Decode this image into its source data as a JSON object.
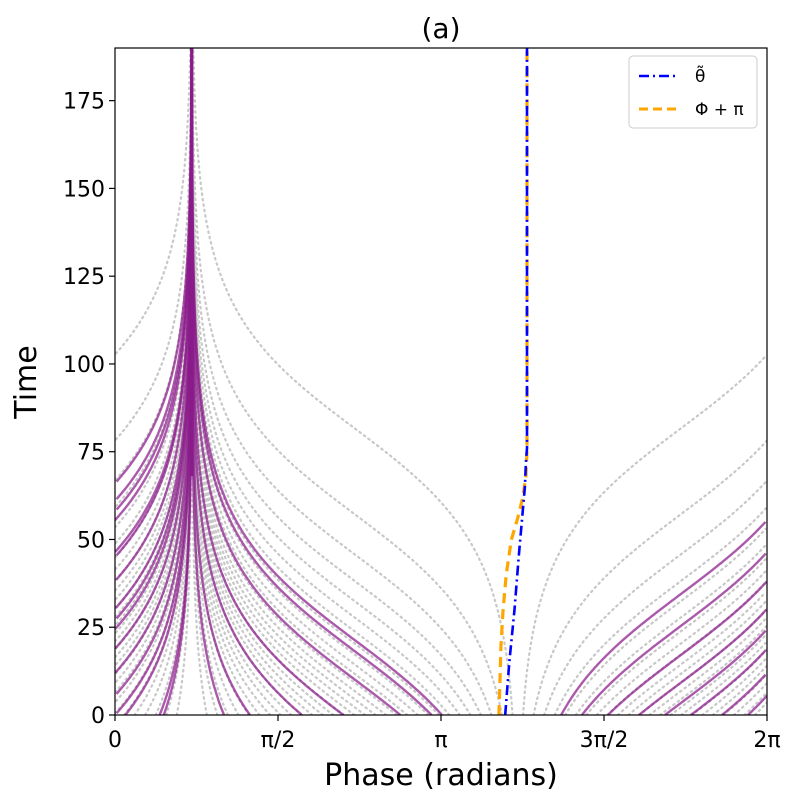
{
  "chart_data": {
    "type": "line",
    "title": "(a)",
    "xlabel": "Phase (radians)",
    "ylabel": "Time",
    "xlim": [
      0,
      6.2832
    ],
    "ylim": [
      0,
      190
    ],
    "x_ticks": [
      {
        "value": 0,
        "label": "0"
      },
      {
        "value": 1.5708,
        "label": "π/2"
      },
      {
        "value": 3.1416,
        "label": "π"
      },
      {
        "value": 4.7124,
        "label": "3π/2"
      },
      {
        "value": 6.2832,
        "label": "2π"
      }
    ],
    "y_ticks": [
      0,
      25,
      50,
      75,
      100,
      125,
      150,
      175
    ],
    "grid": false,
    "legend": {
      "position": "top-right",
      "entries": [
        {
          "label": "θ̃",
          "color": "#0000ff",
          "style": "dash-dot"
        },
        {
          "label": "Φ + π",
          "color": "#ffa500",
          "style": "dashed"
        }
      ]
    },
    "colors": {
      "purple": "#8b1a8b",
      "gray": "#c8c8c8",
      "theta": "#0000ff",
      "phi": "#ffa500"
    },
    "attractor_phase": 0.74,
    "series": [
      {
        "name": "θ̃",
        "x": [
          3.76,
          3.8,
          3.85,
          3.89,
          3.92,
          3.95,
          3.96,
          3.97,
          3.97
        ],
        "y": [
          0,
          15,
          30,
          45,
          55,
          65,
          72,
          76,
          190
        ]
      },
      {
        "name": "Φ + π",
        "x": [
          3.7,
          3.71,
          3.72,
          3.74,
          3.77,
          3.82,
          3.88,
          3.93,
          3.96,
          3.97,
          3.97
        ],
        "y": [
          0,
          10,
          20,
          30,
          40,
          50,
          56,
          62,
          68,
          75,
          190
        ]
      }
    ],
    "purple_trajectories": [
      {
        "start_phase": 0.0,
        "arrival_time": 0
      },
      {
        "start_phase": 0.1,
        "arrival_time": 0
      },
      {
        "start_phase": 0.43,
        "arrival_time": 0
      },
      {
        "start_phase": 0.47,
        "arrival_time": 0
      },
      {
        "start_phase": 0.0,
        "arrival_time": 27
      },
      {
        "start_phase": 0.0,
        "arrival_time": 45
      },
      {
        "start_phase": 0.0,
        "arrival_time": 58
      },
      {
        "start_phase": 0.0,
        "arrival_time": 61
      },
      {
        "start_phase": 0.0,
        "arrival_time": 66
      },
      {
        "start_phase": 1.05,
        "arrival_time": 0
      },
      {
        "start_phase": 1.3,
        "arrival_time": 0
      },
      {
        "start_phase": 1.8,
        "arrival_time": 0
      },
      {
        "start_phase": 2.2,
        "arrival_time": 0
      },
      {
        "start_phase": 2.75,
        "arrival_time": 0
      },
      {
        "start_phase": 3.05,
        "arrival_time": 0
      },
      {
        "start_phase": 3.15,
        "arrival_time": 0
      },
      {
        "start_phase": 4.3,
        "arrival_time": 0
      },
      {
        "start_phase": 4.5,
        "arrival_time": 0
      },
      {
        "start_phase": 4.75,
        "arrival_time": 0
      },
      {
        "start_phase": 5.05,
        "arrival_time": 0
      },
      {
        "start_phase": 5.3,
        "arrival_time": 0
      },
      {
        "start_phase": 5.55,
        "arrival_time": 0
      },
      {
        "start_phase": 5.85,
        "arrival_time": 0
      },
      {
        "start_phase": 6.1,
        "arrival_time": 0
      }
    ],
    "gray_trajectory_count": 60
  }
}
